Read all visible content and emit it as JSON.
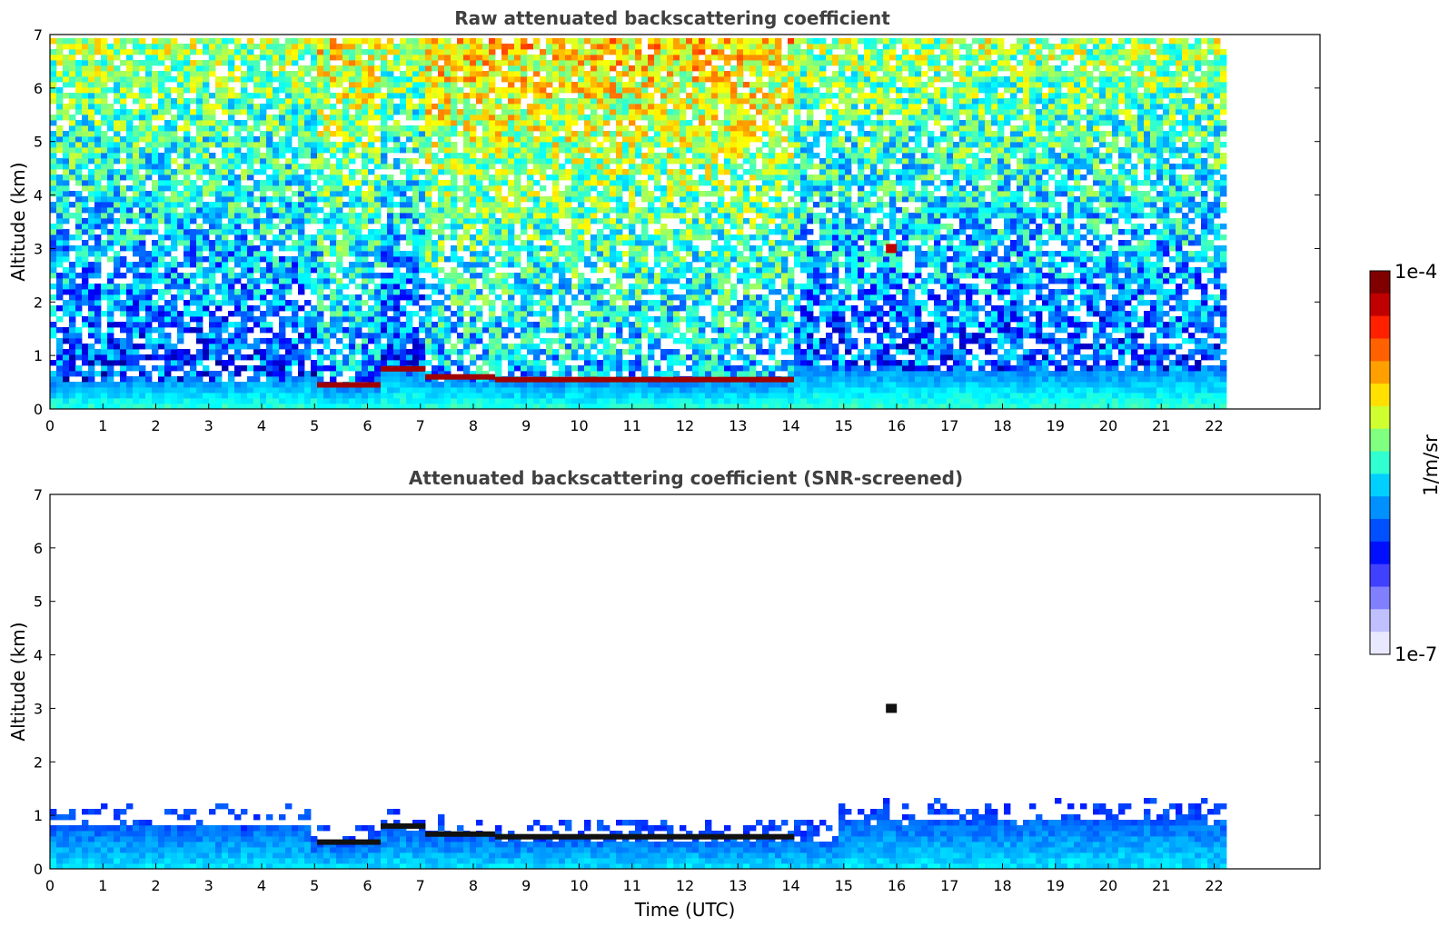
{
  "chart_data": [
    {
      "type": "heatmap",
      "title": "Raw attenuated backscattering coefficient",
      "xlabel": "",
      "ylabel": "Altitude (km)",
      "xlim": [
        0,
        24
      ],
      "ylim": [
        0,
        7
      ],
      "x_ticks": [
        "0",
        "1",
        "2",
        "3",
        "4",
        "5",
        "6",
        "7",
        "8",
        "9",
        "10",
        "11",
        "12",
        "13",
        "14",
        "15",
        "16",
        "17",
        "18",
        "19",
        "20",
        "21",
        "22"
      ],
      "y_ticks": [
        "0",
        "1",
        "2",
        "3",
        "4",
        "5",
        "6",
        "7"
      ],
      "data_end_time": 22.3,
      "colorscale": "jet",
      "screened": false,
      "features": [
        {
          "start": 0.0,
          "end": 5.0,
          "top": 0.6
        },
        {
          "start": 5.0,
          "end": 6.2,
          "top": 0.45
        },
        {
          "start": 6.2,
          "end": 7.0,
          "top": 0.75
        },
        {
          "start": 7.0,
          "end": 8.3,
          "top": 0.6
        },
        {
          "start": 8.3,
          "end": 14.0,
          "top": 0.55
        },
        {
          "start": 14.0,
          "end": 22.3,
          "top": 0.8
        }
      ],
      "isolated_feature": {
        "time": 15.9,
        "altitude": 3.0
      }
    },
    {
      "type": "heatmap",
      "title": "Attenuated backscattering coefficient (SNR-screened)",
      "xlabel": "Time (UTC)",
      "ylabel": "Altitude (km)",
      "xlim": [
        0,
        24
      ],
      "ylim": [
        0,
        7
      ],
      "x_ticks": [
        "0",
        "1",
        "2",
        "3",
        "4",
        "5",
        "6",
        "7",
        "8",
        "9",
        "10",
        "11",
        "12",
        "13",
        "14",
        "15",
        "16",
        "17",
        "18",
        "19",
        "20",
        "21",
        "22"
      ],
      "y_ticks": [
        "0",
        "1",
        "2",
        "3",
        "4",
        "5",
        "6",
        "7"
      ],
      "data_end_time": 22.3,
      "colorscale": "jet",
      "screened": true,
      "features": [
        {
          "start": 0.0,
          "end": 4.9,
          "top": 0.85
        },
        {
          "start": 4.9,
          "end": 6.2,
          "top": 0.5
        },
        {
          "start": 6.2,
          "end": 7.0,
          "top": 0.8
        },
        {
          "start": 7.0,
          "end": 8.3,
          "top": 0.65
        },
        {
          "start": 8.3,
          "end": 14.8,
          "top": 0.6
        },
        {
          "start": 14.8,
          "end": 22.3,
          "top": 0.95
        }
      ],
      "isolated_feature": {
        "time": 15.9,
        "altitude": 3.0
      }
    }
  ],
  "colorbar": {
    "label": "1/m/sr",
    "max_label": "1e-4",
    "min_label": "1e-7",
    "colors": [
      "#800000",
      "#c00000",
      "#ff2000",
      "#ff6000",
      "#ffa000",
      "#ffe000",
      "#d0ff30",
      "#80ff80",
      "#30ffd0",
      "#00d0ff",
      "#0090ff",
      "#0050ff",
      "#0010ff",
      "#4040ff",
      "#8080ff",
      "#c0c0ff",
      "#e8e8ff"
    ]
  }
}
